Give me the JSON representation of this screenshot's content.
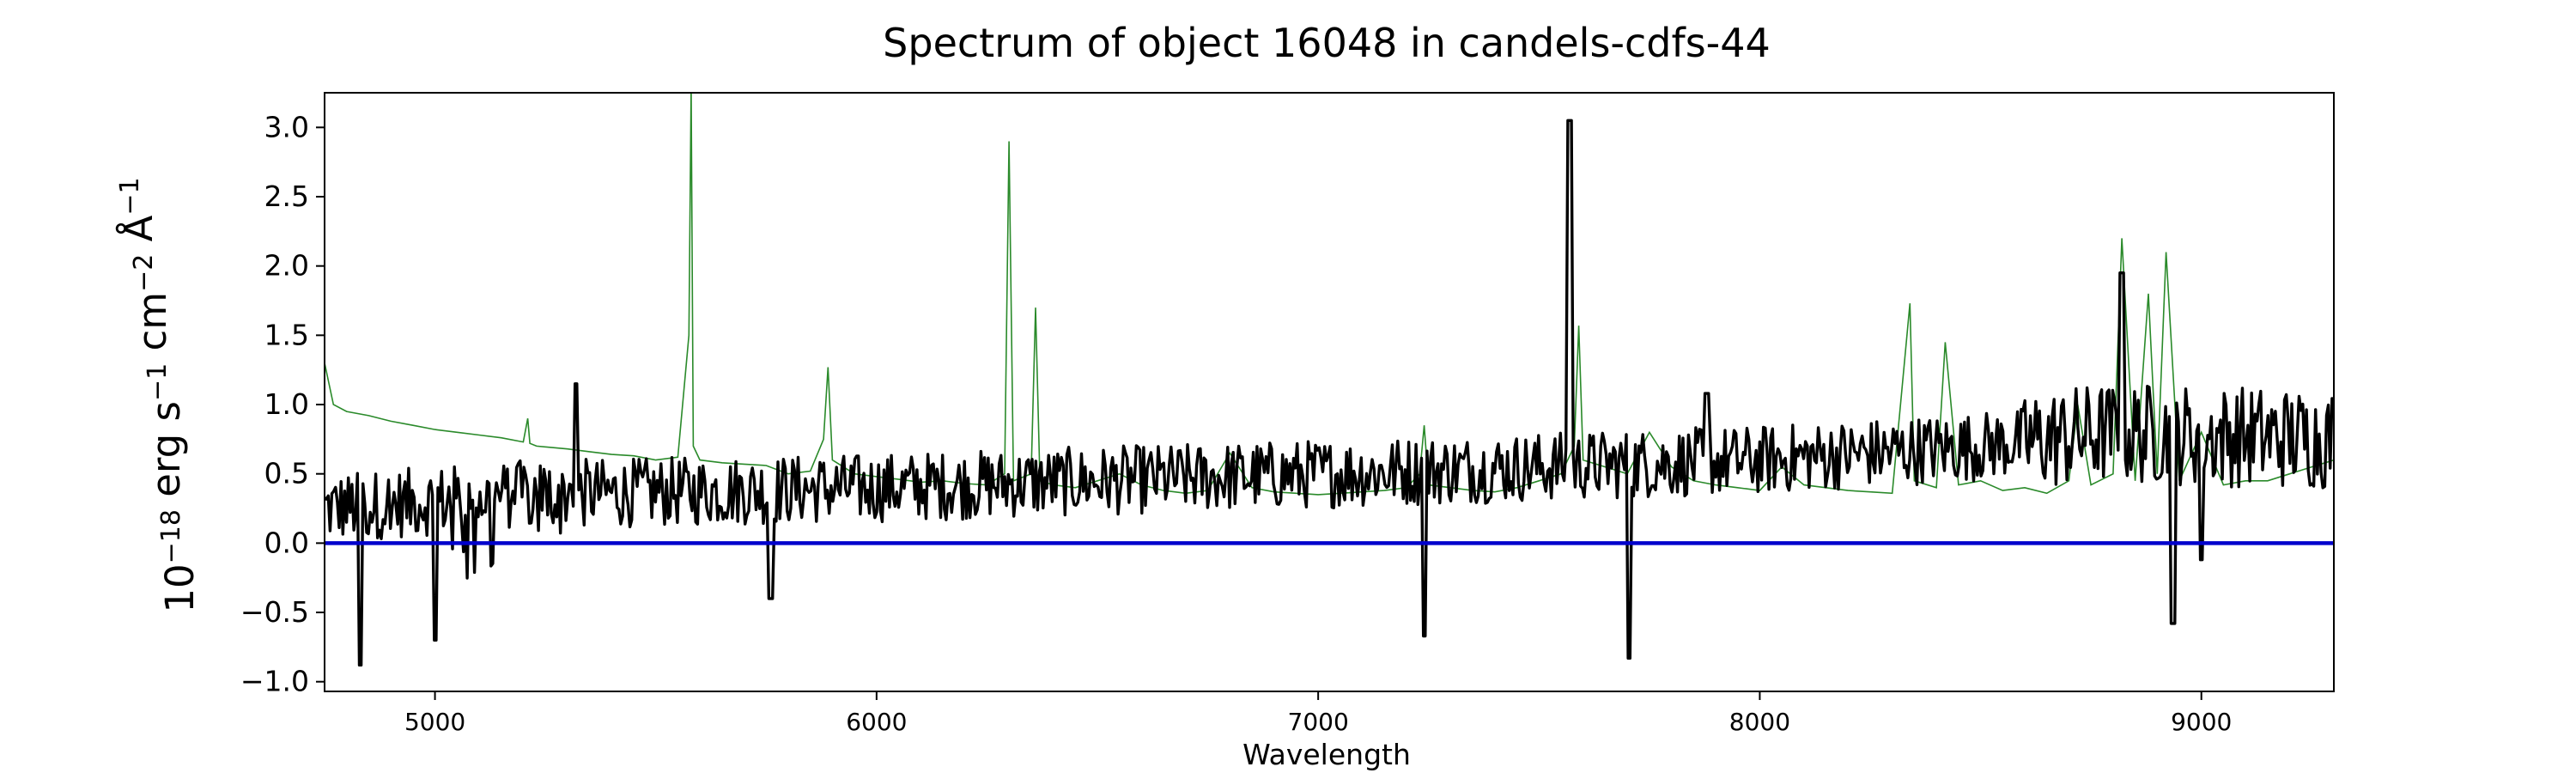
{
  "chart_data": {
    "type": "line",
    "title": "Spectrum of object 16048 in candels-cdfs-44",
    "xlabel": "Wavelength",
    "ylabel_base": "10",
    "ylabel_exp": "−18",
    "ylabel_rest": [
      {
        "t": " erg s",
        "sup": "−1"
      },
      {
        "t": " cm",
        "sup": "−2"
      },
      {
        "t": " Å",
        "sup": "−1"
      }
    ],
    "xlim": [
      4750,
      9300
    ],
    "ylim": [
      -1.07,
      3.25
    ],
    "xticks": [
      5000,
      6000,
      7000,
      8000,
      9000
    ],
    "xtick_labels": [
      "5000",
      "6000",
      "7000",
      "8000",
      "9000"
    ],
    "yticks": [
      -1.0,
      -0.5,
      0.0,
      0.5,
      1.0,
      1.5,
      2.0,
      2.5,
      3.0
    ],
    "ytick_labels": [
      "−1.0",
      "−0.5",
      "0.0",
      "0.5",
      "1.0",
      "1.5",
      "2.0",
      "2.5",
      "3.0"
    ],
    "grid": false,
    "legend": "none",
    "series": [
      {
        "role": "noise",
        "color": "#2a8a2a",
        "x": [
          4750,
          4770,
          4800,
          4850,
          4900,
          4950,
          5000,
          5050,
          5100,
          5150,
          5200,
          5210,
          5215,
          5230,
          5300,
          5350,
          5400,
          5450,
          5500,
          5550,
          5575,
          5580,
          5585,
          5600,
          5650,
          5700,
          5750,
          5800,
          5850,
          5880,
          5890,
          5900,
          5950,
          6000,
          6050,
          6100,
          6150,
          6200,
          6250,
          6290,
          6300,
          6310,
          6350,
          6360,
          6370,
          6400,
          6450,
          6500,
          6550,
          6600,
          6650,
          6700,
          6750,
          6800,
          6850,
          6900,
          6950,
          7000,
          7050,
          7100,
          7150,
          7200,
          7230,
          7240,
          7250,
          7300,
          7350,
          7400,
          7450,
          7500,
          7550,
          7580,
          7590,
          7600,
          7650,
          7700,
          7750,
          7800,
          7850,
          7900,
          7950,
          8000,
          8050,
          8100,
          8150,
          8200,
          8250,
          8300,
          8340,
          8350,
          8400,
          8420,
          8450,
          8500,
          8550,
          8600,
          8650,
          8700,
          8720,
          8750,
          8800,
          8820,
          8850,
          8880,
          8900,
          8920,
          8950,
          9000,
          9050,
          9100,
          9150,
          9200,
          9250,
          9300
        ],
        "y": [
          1.3,
          1.0,
          0.95,
          0.92,
          0.88,
          0.85,
          0.82,
          0.8,
          0.78,
          0.76,
          0.73,
          0.9,
          0.72,
          0.7,
          0.68,
          0.66,
          0.64,
          0.63,
          0.6,
          0.62,
          1.5,
          3.3,
          0.7,
          0.6,
          0.58,
          0.57,
          0.56,
          0.5,
          0.52,
          0.75,
          1.27,
          0.6,
          0.5,
          0.48,
          0.46,
          0.44,
          0.45,
          0.43,
          0.42,
          0.5,
          2.9,
          0.45,
          0.5,
          1.7,
          0.45,
          0.42,
          0.4,
          0.45,
          0.5,
          0.42,
          0.38,
          0.36,
          0.38,
          0.65,
          0.4,
          0.37,
          0.36,
          0.35,
          0.36,
          0.37,
          0.38,
          0.4,
          0.5,
          0.85,
          0.42,
          0.4,
          0.38,
          0.37,
          0.4,
          0.45,
          0.5,
          0.7,
          1.57,
          0.6,
          0.55,
          0.5,
          0.8,
          0.55,
          0.45,
          0.42,
          0.4,
          0.38,
          0.55,
          0.42,
          0.4,
          0.38,
          0.37,
          0.36,
          1.73,
          0.45,
          0.4,
          1.45,
          0.42,
          0.45,
          0.38,
          0.4,
          0.36,
          0.45,
          1.0,
          0.42,
          0.5,
          2.2,
          0.45,
          1.8,
          0.5,
          2.1,
          0.45,
          0.8,
          0.42,
          0.45,
          0.45,
          0.5,
          0.55,
          0.6
        ]
      },
      {
        "role": "zero",
        "color": "#0000cc",
        "x": [
          4750,
          9300
        ],
        "y": [
          0.0,
          0.0
        ]
      }
    ],
    "flux_spec": {
      "role": "flux",
      "color": "#000000",
      "x_start": 4750,
      "x_end": 9300,
      "n": 1100,
      "baseline_knots_x": [
        4750,
        5200,
        6000,
        6500,
        7000,
        7500,
        8000,
        8500,
        8800,
        9300
      ],
      "baseline_knots_y": [
        0.25,
        0.35,
        0.4,
        0.45,
        0.5,
        0.55,
        0.6,
        0.7,
        0.8,
        0.75
      ],
      "features_x": [
        4830,
        5000,
        5320,
        5760,
        7240,
        7570,
        7705,
        7880,
        8820,
        8935,
        9000
      ],
      "features_y": [
        -0.88,
        -0.7,
        1.15,
        -0.4,
        -0.67,
        3.05,
        -0.83,
        1.08,
        1.95,
        -0.58,
        -0.12
      ]
    }
  }
}
